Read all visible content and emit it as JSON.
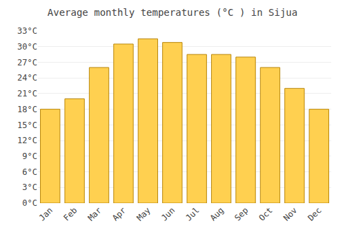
{
  "chart_data": {
    "type": "bar",
    "title": "Average monthly temperatures (°C ) in Sijua",
    "categories": [
      "Jan",
      "Feb",
      "Mar",
      "Apr",
      "May",
      "Jun",
      "Jul",
      "Aug",
      "Sep",
      "Oct",
      "Nov",
      "Dec"
    ],
    "values": [
      18,
      20,
      26,
      30.5,
      31.5,
      30.8,
      28.5,
      28.5,
      28,
      26,
      22,
      18
    ],
    "color": "#FFD050",
    "ylim": [
      0,
      33
    ],
    "yticks": [
      {
        "value": 0,
        "label": "0°C"
      },
      {
        "value": 3,
        "label": "3°C"
      },
      {
        "value": 6,
        "label": "6°C"
      },
      {
        "value": 9,
        "label": "9°C"
      },
      {
        "value": 12,
        "label": "12°C"
      },
      {
        "value": 15,
        "label": "15°C"
      },
      {
        "value": 18,
        "label": "18°C"
      },
      {
        "value": 21,
        "label": "21°C"
      },
      {
        "value": 24,
        "label": "24°C"
      },
      {
        "value": 27,
        "label": "27°C"
      },
      {
        "value": 30,
        "label": "30°C"
      },
      {
        "value": 33,
        "label": "33°C"
      }
    ],
    "grid": true
  }
}
